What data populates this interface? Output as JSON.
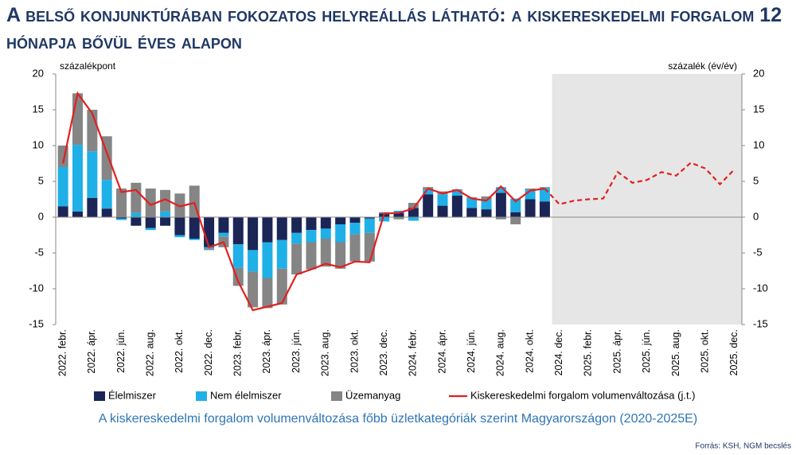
{
  "chart_data": {
    "type": "bar",
    "title": "A belső konjunktúrában fokozatos helyreállás látható: a kiskereskedelmi forgalom 12 hónapja bővül éves alapon",
    "ylabel": "százalékpont",
    "y2label": "százalék (év/év)",
    "caption": "A kiskereskedelmi forgalom volumenváltozása főbb üzletkategóriák szerint Magyarországon (2020-2025E)",
    "source": "Forrás: KSH, NGM becslés",
    "categories": [
      "2022. febr.",
      null,
      "2022. ápr.",
      null,
      "2022. jún.",
      null,
      "2022. aug.",
      null,
      "2022. okt.",
      null,
      "2022. dec.",
      null,
      "2023. febr.",
      null,
      "2023. ápr.",
      null,
      "2023. jún.",
      null,
      "2023. aug.",
      null,
      "2023. okt.",
      null,
      "2023. dec.",
      null,
      "2024. febr.",
      null,
      "2024. ápr.",
      null,
      "2024. jún.",
      null,
      "2024. aug.",
      null,
      "2024. okt.",
      null,
      "2024. dec.",
      null,
      "2025. febr.",
      null,
      "2025. ápr.",
      null,
      "2025. jún.",
      null,
      "2025. aug.",
      null,
      "2025. okt.",
      null,
      "2025. dec."
    ],
    "shaded_region": [
      "2024. dec.",
      "2025. dec."
    ],
    "series": [
      {
        "name": "Élelmiszer",
        "color": "#1b2657",
        "values": [
          1.5,
          0.8,
          2.7,
          1.2,
          -0.2,
          -1.2,
          -1.5,
          -1.2,
          -2.5,
          -3.0,
          -4.2,
          -2.2,
          -3.8,
          -4.6,
          -3.5,
          -3.2,
          -2.2,
          -1.8,
          -1.6,
          -1.0,
          -0.8,
          -0.2,
          0.5,
          0.6,
          1.3,
          3.2,
          1.6,
          3.0,
          1.3,
          1.1,
          3.4,
          0.7,
          2.5,
          2.2,
          null,
          null,
          null,
          null,
          null,
          null,
          null,
          null,
          null,
          null,
          null,
          null,
          null
        ]
      },
      {
        "name": "Nem élelmiszer",
        "color": "#1fb0e8",
        "values": [
          5.5,
          9.3,
          6.5,
          4.0,
          -0.2,
          0.6,
          -0.3,
          0.8,
          -0.3,
          -0.2,
          -0.2,
          -0.5,
          -3.3,
          -3.0,
          -5.0,
          -4.0,
          -1.5,
          -1.7,
          -1.4,
          -2.5,
          -1.6,
          -2.0,
          -0.6,
          0.3,
          -0.5,
          0.6,
          1.6,
          0.6,
          1.4,
          1.4,
          0.8,
          1.9,
          1.3,
          1.9,
          null,
          null,
          null,
          null,
          null,
          null,
          null,
          null,
          null,
          null,
          null,
          null,
          null
        ]
      },
      {
        "name": "Üzemanyag",
        "color": "#858585",
        "values": [
          3.0,
          7.2,
          5.8,
          6.1,
          4.0,
          4.2,
          4.0,
          3.0,
          3.3,
          4.4,
          -0.2,
          -1.5,
          -2.5,
          -5.0,
          -4.2,
          -5.0,
          -4.3,
          -3.8,
          -3.9,
          -3.7,
          -3.8,
          -4.0,
          0.2,
          -0.3,
          0.7,
          0.4,
          0.4,
          0.3,
          0.1,
          0.4,
          -0.3,
          -1.0,
          0.2,
          0.1,
          null,
          null,
          null,
          null,
          null,
          null,
          null,
          null,
          null,
          null,
          null,
          null,
          null
        ]
      },
      {
        "name": "Kiskereskedelmi forgalom volumenváltozása (j.t.)",
        "color": "#e02020",
        "type": "line",
        "axis": "y2",
        "values": [
          7.5,
          17.3,
          14.5,
          9.0,
          3.5,
          3.8,
          1.7,
          2.5,
          1.5,
          2.0,
          -4.2,
          -3.5,
          -9.0,
          -13.0,
          -12.5,
          -12.0,
          -8.0,
          -7.3,
          -6.5,
          -7.0,
          -6.2,
          -6.3,
          0.5,
          0.6,
          1.2,
          4.0,
          3.3,
          3.8,
          2.6,
          2.3,
          4.3,
          2.2,
          3.7,
          4.0,
          1.8,
          2.3,
          2.5,
          2.6,
          6.3,
          4.8,
          5.2,
          6.3,
          5.8,
          7.6,
          6.8,
          4.6,
          6.7
        ]
      }
    ],
    "ylim": [
      -15,
      20
    ],
    "yticks": [
      -15,
      -10,
      -5,
      0,
      5,
      10,
      15,
      20
    ],
    "y2lim": [
      -15,
      20
    ],
    "y2ticks": [
      -15,
      -10,
      -5,
      0,
      5,
      10,
      15,
      20
    ]
  }
}
